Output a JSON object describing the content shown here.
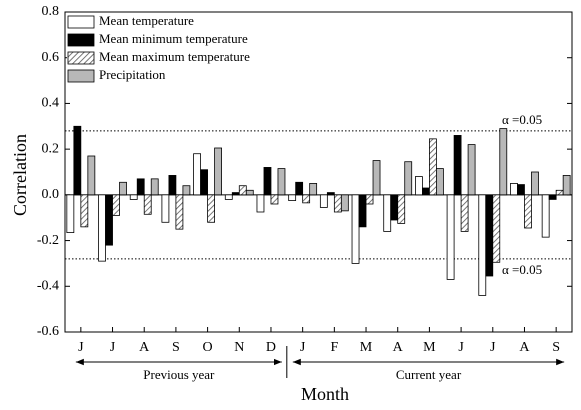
{
  "chart_data": {
    "type": "bar",
    "x_label": "Month",
    "y_label": "Correlation",
    "categories": [
      "J",
      "J",
      "A",
      "S",
      "O",
      "N",
      "D",
      "J",
      "F",
      "M",
      "A",
      "M",
      "J",
      "J",
      "A",
      "S"
    ],
    "group_labels": [
      "Previous year",
      "Current year"
    ],
    "series": [
      {
        "name": "Mean temperature",
        "color": "#ffffff",
        "values": [
          -0.165,
          -0.29,
          -0.02,
          -0.12,
          0.18,
          -0.02,
          -0.075,
          -0.025,
          -0.055,
          -0.3,
          -0.16,
          0.08,
          -0.37,
          -0.44,
          0.05,
          -0.185
        ]
      },
      {
        "name": "Mean minimum temperature",
        "color": "#000000",
        "values": [
          0.3,
          -0.22,
          0.07,
          0.085,
          0.11,
          0.01,
          0.12,
          0.055,
          0.01,
          -0.14,
          -0.11,
          0.03,
          0.26,
          -0.355,
          0.045,
          -0.02
        ]
      },
      {
        "name": "Mean maximum temperature",
        "color": "#555555",
        "pattern": "hatch",
        "values": [
          -0.14,
          -0.09,
          -0.085,
          -0.15,
          -0.12,
          0.04,
          -0.04,
          -0.035,
          -0.075,
          -0.04,
          -0.125,
          0.245,
          -0.16,
          -0.295,
          -0.145,
          0.02
        ]
      },
      {
        "name": "Precipitation",
        "color": "#b8b8b8",
        "values": [
          0.17,
          0.055,
          0.07,
          0.04,
          0.205,
          0.02,
          0.115,
          0.05,
          -0.07,
          0.15,
          0.145,
          0.115,
          0.22,
          0.29,
          0.1,
          0.085
        ]
      }
    ],
    "reference_lines": [
      {
        "value": 0.28,
        "label": "α =0.05"
      },
      {
        "value": -0.28,
        "label": "α =0.05"
      }
    ],
    "ylim": [
      -0.6,
      0.8
    ],
    "yticks": [
      -0.6,
      -0.4,
      -0.2,
      {
        "value": 0,
        "label": "0.0"
      },
      0.2,
      0.4,
      0.6,
      0.8
    ],
    "legend": "upper-left",
    "grid": false
  }
}
